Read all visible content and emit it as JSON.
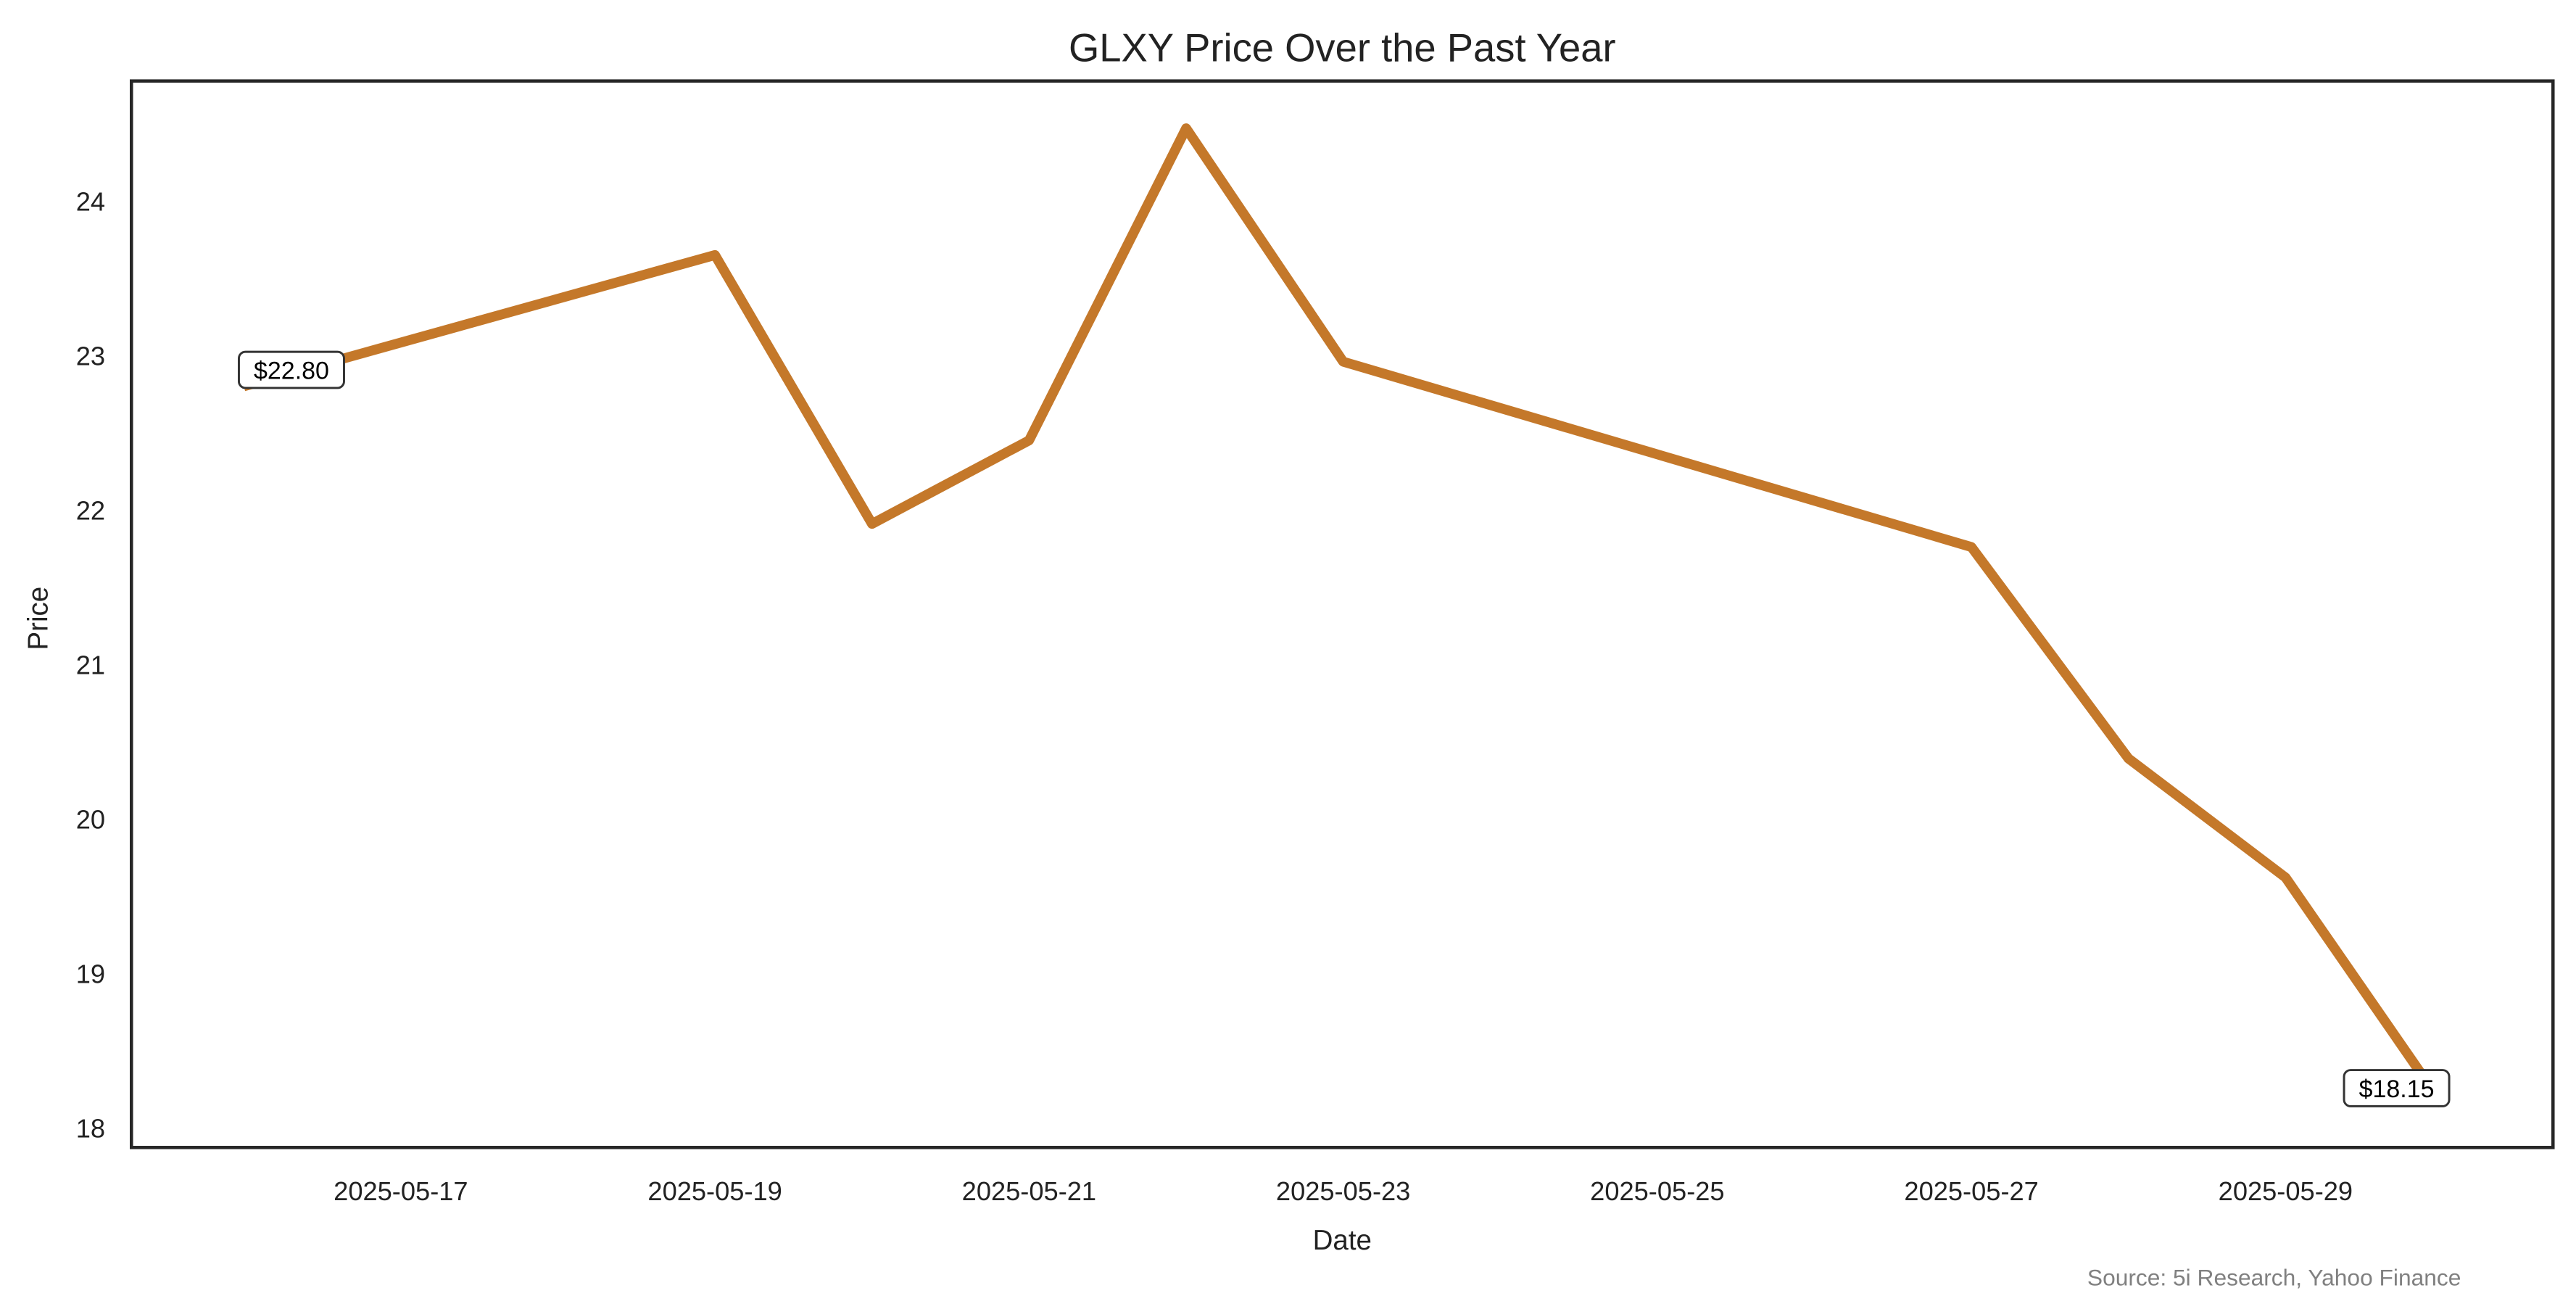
{
  "chart_data": {
    "type": "line",
    "title": "GLXY Price Over the Past Year",
    "xlabel": "Date",
    "ylabel": "Price",
    "source": "Source: 5i Research, Yahoo Finance",
    "line_color": "#C4782A",
    "grid": false,
    "ylim": [
      17.85,
      24.8
    ],
    "xlim": [
      "2025-05-15",
      "2025-06-01"
    ],
    "x_ticks": [
      "2025-05-17",
      "2025-05-19",
      "2025-05-21",
      "2025-05-23",
      "2025-05-25",
      "2025-05-27",
      "2025-05-29"
    ],
    "y_ticks": [
      "18",
      "19",
      "20",
      "21",
      "22",
      "23",
      "24"
    ],
    "series": [
      {
        "x": [
          "2025-05-16",
          "2025-05-19",
          "2025-05-20",
          "2025-05-21",
          "2025-05-22",
          "2025-05-23",
          "2025-05-27",
          "2025-05-28",
          "2025-05-29",
          "2025-05-30"
        ],
        "y": [
          22.8,
          23.65,
          21.91,
          22.45,
          24.47,
          22.96,
          21.76,
          20.39,
          19.62,
          18.15
        ]
      }
    ],
    "annotations": [
      {
        "x": "2025-05-16",
        "y": 22.8,
        "text": "$22.80"
      },
      {
        "x": "2025-05-30",
        "y": 18.15,
        "text": "$18.15"
      }
    ]
  }
}
